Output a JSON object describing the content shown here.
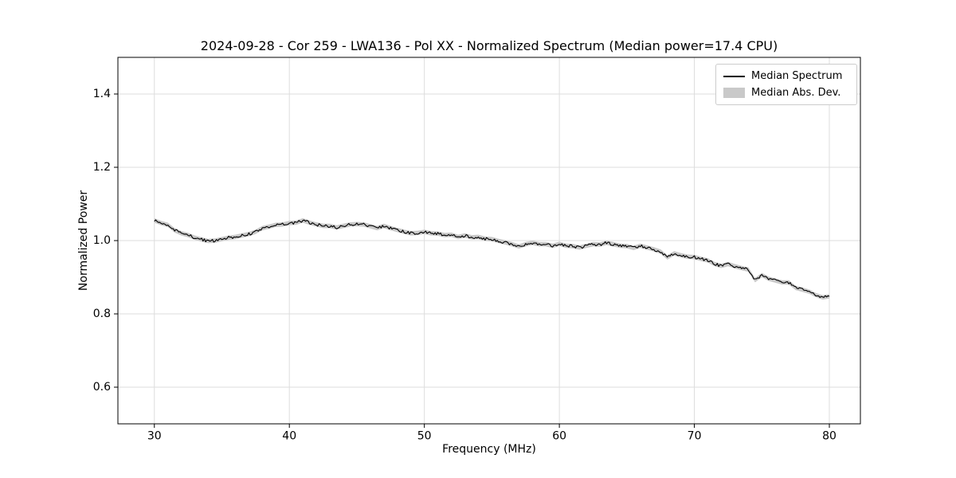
{
  "chart_data": {
    "type": "line",
    "title": "2024-09-28 - Cor 259 - LWA136 - Pol XX - Normalized Spectrum (Median power=17.4 CPU)",
    "xlabel": "Frequency (MHz)",
    "ylabel": "Normalized Power",
    "xlim": [
      27.3,
      82.3
    ],
    "ylim": [
      0.5,
      1.5
    ],
    "xticks": [
      30,
      40,
      50,
      60,
      70,
      80
    ],
    "yticks": [
      0.6,
      0.8,
      1.0,
      1.2,
      1.4
    ],
    "grid": true,
    "legend": {
      "position": "upper right",
      "entries": [
        {
          "label": "Median Spectrum",
          "type": "line",
          "color": "#000000"
        },
        {
          "label": "Median Abs. Dev.",
          "type": "patch",
          "color": "#c9c9c9"
        }
      ]
    },
    "style": {
      "line_color": "#000000",
      "band_color": "#c9c9c9",
      "grid_color": "#dddddd",
      "spine_color": "#000000"
    },
    "noise_amplitude": 0.004,
    "mad_halfwidth": 0.006,
    "series": [
      {
        "name": "Median Spectrum",
        "x": [
          30,
          30.5,
          31,
          31.5,
          32,
          32.5,
          33,
          33.5,
          34,
          34.5,
          35,
          35.5,
          36,
          36.5,
          37,
          37.5,
          38,
          38.5,
          39,
          39.5,
          40,
          40.5,
          41,
          41.5,
          42,
          42.5,
          43,
          43.5,
          44,
          44.5,
          45,
          45.5,
          46,
          46.5,
          47,
          47.5,
          48,
          48.5,
          49,
          49.5,
          50,
          50.5,
          51,
          51.5,
          52,
          52.5,
          53,
          53.5,
          54,
          54.5,
          55,
          55.5,
          56,
          56.5,
          57,
          57.5,
          58,
          58.5,
          59,
          59.5,
          60,
          60.5,
          61,
          61.5,
          62,
          62.5,
          63,
          63.5,
          64,
          64.5,
          65,
          65.5,
          66,
          66.5,
          67,
          67.5,
          68,
          68.5,
          69,
          69.5,
          70,
          70.5,
          71,
          71.5,
          72,
          72.5,
          73,
          73.5,
          74,
          74.5,
          75,
          75.5,
          76,
          76.5,
          77,
          77.5,
          78,
          78.5,
          79,
          79.5,
          80
        ],
        "y": [
          1.055,
          1.048,
          1.043,
          1.028,
          1.02,
          1.015,
          1.008,
          1.003,
          0.999,
          1.0,
          1.004,
          1.008,
          1.01,
          1.014,
          1.018,
          1.024,
          1.034,
          1.038,
          1.043,
          1.044,
          1.048,
          1.049,
          1.055,
          1.049,
          1.044,
          1.04,
          1.04,
          1.036,
          1.04,
          1.044,
          1.045,
          1.044,
          1.039,
          1.034,
          1.04,
          1.034,
          1.029,
          1.024,
          1.02,
          1.021,
          1.024,
          1.02,
          1.019,
          1.015,
          1.016,
          1.01,
          1.014,
          1.009,
          1.01,
          1.005,
          1.004,
          0.999,
          0.995,
          0.99,
          0.984,
          0.99,
          0.994,
          0.99,
          0.99,
          0.986,
          0.991,
          0.986,
          0.985,
          0.981,
          0.986,
          0.99,
          0.989,
          0.994,
          0.99,
          0.986,
          0.985,
          0.98,
          0.986,
          0.981,
          0.976,
          0.97,
          0.954,
          0.965,
          0.96,
          0.956,
          0.955,
          0.95,
          0.946,
          0.936,
          0.931,
          0.936,
          0.93,
          0.925,
          0.921,
          0.892,
          0.906,
          0.896,
          0.891,
          0.886,
          0.886,
          0.871,
          0.866,
          0.861,
          0.851,
          0.845,
          0.848
        ]
      }
    ]
  }
}
